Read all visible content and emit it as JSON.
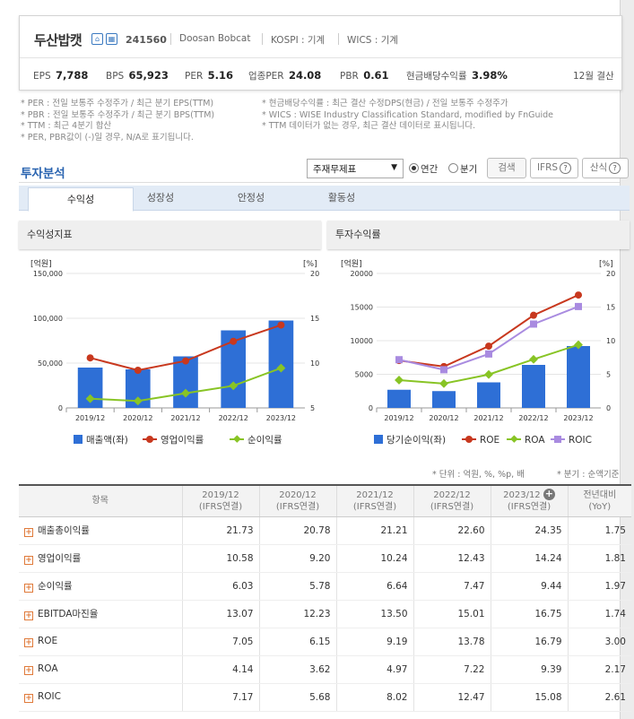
{
  "header": {
    "company": "두산밥캣",
    "code": "241560",
    "english_name": "Doosan Bobcat",
    "kospi": "KOSPI : 기계",
    "wics": "WICS : 기계",
    "settlement": "12월 결산",
    "stats": [
      {
        "label": "EPS",
        "value": "7,788"
      },
      {
        "label": "BPS",
        "value": "65,923"
      },
      {
        "label": "PER",
        "value": "5.16"
      },
      {
        "label": "업종PER",
        "value": "24.08"
      },
      {
        "label": "PBR",
        "value": "0.61"
      },
      {
        "label": "현금배당수익률",
        "value": "3.98%"
      }
    ]
  },
  "notes_left": [
    "* PER : 전일 보통주 수정주가 / 최근 분기 EPS(TTM)",
    "* PBR : 전일 보통주 수정주가 / 최근 분기 BPS(TTM)",
    "* TTM : 최근 4분기 합산",
    "* PER, PBR값이 (-)일 경우, N/A로 표기됩니다."
  ],
  "notes_right": [
    "* 현금배당수익률 : 최근 결산 수정DPS(현금) / 전일 보통주 수정주가",
    "* WICS : WISE Industry Classification Standard, modified by FnGuide",
    "* TTM 데이터가 없는 경우, 최근 결산 데이터로 표시됩니다."
  ],
  "section_title": "투자분석",
  "controls": {
    "select": "주재무제표",
    "radio_annual": "연간",
    "radio_quarter": "분기",
    "search_button": "검색",
    "ifrs_button": "IFRS",
    "formula_button": "산식"
  },
  "tabs": [
    "수익성",
    "성장성",
    "안정성",
    "활동성"
  ],
  "panel_left_title": "수익성지표",
  "panel_right_title": "투자수익률",
  "chart_data": [
    {
      "type": "bar+line",
      "title": "",
      "categories": [
        "2019/12",
        "2020/12",
        "2021/12",
        "2022/12",
        "2023/12"
      ],
      "y_left_unit": "[억원]",
      "y_right_unit": "[%]",
      "y_left_ticks": [
        "0",
        "50,000",
        "100,000",
        "150,000"
      ],
      "y_right_ticks": [
        "5",
        "10",
        "15",
        "20"
      ],
      "y_left_range": [
        0,
        150000
      ],
      "y_right_range": [
        5,
        20
      ],
      "series": [
        {
          "name": "매출액(좌)",
          "type": "bar",
          "axis": "left",
          "color": "#2e6fd6",
          "values": [
            45000,
            43000,
            57500,
            86500,
            97500
          ]
        },
        {
          "name": "영업이익률",
          "type": "line",
          "axis": "right",
          "color": "#c8381e",
          "values": [
            10.58,
            9.2,
            10.24,
            12.43,
            14.24
          ]
        },
        {
          "name": "순이익률",
          "type": "line",
          "axis": "right",
          "color": "#88c425",
          "values": [
            6.03,
            5.78,
            6.64,
            7.47,
            9.44
          ]
        }
      ]
    },
    {
      "type": "bar+line",
      "title": "",
      "categories": [
        "2019/12",
        "2020/12",
        "2021/12",
        "2022/12",
        "2023/12"
      ],
      "y_left_unit": "[억원]",
      "y_right_unit": "[%]",
      "y_left_ticks": [
        "0",
        "5000",
        "10000",
        "15000",
        "20000"
      ],
      "y_right_ticks": [
        "0",
        "5",
        "10",
        "15",
        "20"
      ],
      "y_left_range": [
        0,
        20000
      ],
      "y_right_range": [
        0,
        20
      ],
      "series": [
        {
          "name": "당기순이익(좌)",
          "type": "bar",
          "axis": "left",
          "color": "#2e6fd6",
          "values": [
            2700,
            2500,
            3800,
            6400,
            9200
          ]
        },
        {
          "name": "ROE",
          "type": "line",
          "axis": "right",
          "color": "#c8381e",
          "values": [
            7.05,
            6.15,
            9.19,
            13.78,
            16.79
          ]
        },
        {
          "name": "ROA",
          "type": "line",
          "axis": "right",
          "color": "#88c425",
          "values": [
            4.14,
            3.62,
            4.97,
            7.22,
            9.39
          ]
        },
        {
          "name": "ROIC",
          "type": "line",
          "axis": "right",
          "color": "#a98be0",
          "values": [
            7.17,
            5.68,
            8.02,
            12.47,
            15.08
          ]
        }
      ]
    }
  ],
  "unit_note": "* 단위 : 억원, %, %p, 배",
  "quarter_note": "* 분기 : 순액기준",
  "table": {
    "header_item": "항목",
    "columns": [
      {
        "year": "2019/12",
        "sub": "(IFRS연결)"
      },
      {
        "year": "2020/12",
        "sub": "(IFRS연결)"
      },
      {
        "year": "2021/12",
        "sub": "(IFRS연결)"
      },
      {
        "year": "2022/12",
        "sub": "(IFRS연결)"
      },
      {
        "year": "2023/12",
        "sub": "(IFRS연결)"
      },
      {
        "year": "전년대비",
        "sub": "(YoY)"
      }
    ],
    "rows": [
      {
        "label": "매출총이익률",
        "values": [
          "21.73",
          "20.78",
          "21.21",
          "22.60",
          "24.35",
          "1.75"
        ]
      },
      {
        "label": "영업이익률",
        "values": [
          "10.58",
          "9.20",
          "10.24",
          "12.43",
          "14.24",
          "1.81"
        ]
      },
      {
        "label": "순이익률",
        "values": [
          "6.03",
          "5.78",
          "6.64",
          "7.47",
          "9.44",
          "1.97"
        ]
      },
      {
        "label": "EBITDA마진율",
        "values": [
          "13.07",
          "12.23",
          "13.50",
          "15.01",
          "16.75",
          "1.74"
        ]
      },
      {
        "label": "ROE",
        "values": [
          "7.05",
          "6.15",
          "9.19",
          "13.78",
          "16.79",
          "3.00"
        ]
      },
      {
        "label": "ROA",
        "values": [
          "4.14",
          "3.62",
          "4.97",
          "7.22",
          "9.39",
          "2.17"
        ]
      },
      {
        "label": "ROIC",
        "values": [
          "7.17",
          "5.68",
          "8.02",
          "12.47",
          "15.08",
          "2.61"
        ]
      }
    ]
  }
}
